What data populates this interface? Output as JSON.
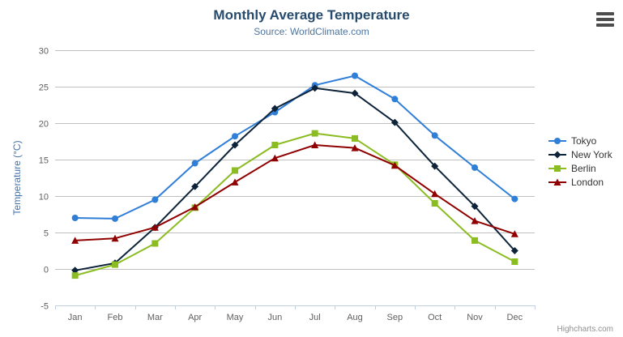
{
  "chart": {
    "title": "Monthly Average Temperature",
    "subtitle": "Source: WorldClimate.com",
    "credit": "Highcharts.com",
    "export_menu_icon": "hamburger-menu-icon"
  },
  "chart_data": {
    "type": "line",
    "title": "Monthly Average Temperature",
    "subtitle": "Source: WorldClimate.com",
    "categories": [
      "Jan",
      "Feb",
      "Mar",
      "Apr",
      "May",
      "Jun",
      "Jul",
      "Aug",
      "Sep",
      "Oct",
      "Nov",
      "Dec"
    ],
    "series": [
      {
        "name": "Tokyo",
        "marker": "circle",
        "color": "#2f7ed8",
        "values": [
          7.0,
          6.9,
          9.5,
          14.5,
          18.2,
          21.5,
          25.2,
          26.5,
          23.3,
          18.3,
          13.9,
          9.6
        ]
      },
      {
        "name": "New York",
        "marker": "diamond",
        "color": "#0d233a",
        "values": [
          -0.2,
          0.8,
          5.7,
          11.3,
          17.0,
          22.0,
          24.8,
          24.1,
          20.1,
          14.1,
          8.6,
          2.5
        ]
      },
      {
        "name": "Berlin",
        "marker": "square",
        "color": "#8bbc21",
        "values": [
          -0.9,
          0.6,
          3.5,
          8.4,
          13.5,
          17.0,
          18.6,
          17.9,
          14.3,
          9.0,
          3.9,
          1.0
        ]
      },
      {
        "name": "London",
        "marker": "triangle",
        "color": "#910000",
        "values": [
          3.9,
          4.2,
          5.7,
          8.5,
          11.9,
          15.2,
          17.0,
          16.6,
          14.2,
          10.3,
          6.6,
          4.8
        ]
      }
    ],
    "xlabel": "",
    "ylabel": "Temperature (°C)",
    "ylim": [
      -5,
      30
    ],
    "ytick_step": 5,
    "yticks": [
      "-5",
      "0",
      "5",
      "10",
      "15",
      "20",
      "25",
      "30"
    ],
    "grid": "horizontal",
    "legend_position": "right"
  },
  "theme": {
    "title_color": "#274b6d",
    "subtitle_color": "#4d759e",
    "yaxis_title_color": "#4572a7",
    "tick_label_color": "#606060",
    "grid_color": "#c0c0c0",
    "axis_line_color": "#c0d0e0",
    "legend_text_color": "#333333",
    "credit_color": "#909090"
  }
}
